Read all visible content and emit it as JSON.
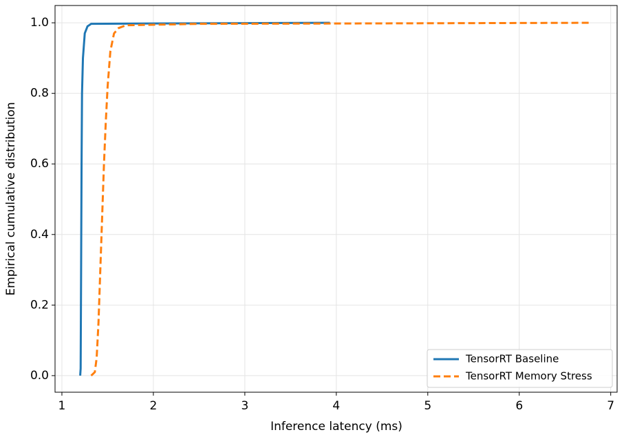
{
  "chart_data": {
    "type": "line",
    "xlabel": "Inference latency (ms)",
    "ylabel": "Empirical cumulative distribution",
    "xlim": [
      0.925,
      7.07
    ],
    "ylim": [
      -0.047,
      1.049
    ],
    "xticks": [
      1,
      2,
      3,
      4,
      5,
      6,
      7
    ],
    "yticks": [
      {
        "value": 0,
        "label": "0.0"
      },
      {
        "value": 0.2,
        "label": "0.2"
      },
      {
        "value": 0.4,
        "label": "0.4"
      },
      {
        "value": 0.6,
        "label": "0.6"
      },
      {
        "value": 0.8,
        "label": "0.8"
      },
      {
        "value": 1,
        "label": "1.0"
      }
    ],
    "grid": true,
    "legend": "lower right",
    "series": [
      {
        "name": "TensorRT Baseline",
        "color": "#1f77b4",
        "linestyle": "solid",
        "x": [
          1.2,
          1.205,
          1.21,
          1.215,
          1.22,
          1.23,
          1.25,
          1.28,
          1.32,
          2.0,
          3.0,
          3.93
        ],
        "values": [
          0,
          0.02,
          0.3,
          0.6,
          0.8,
          0.9,
          0.97,
          0.99,
          0.997,
          0.998,
          0.999,
          1.0
        ]
      },
      {
        "name": "TensorRT Memory Stress",
        "color": "#ff7f0e",
        "linestyle": "dashed",
        "x": [
          1.32,
          1.36,
          1.38,
          1.4,
          1.42,
          1.44,
          1.46,
          1.48,
          1.5,
          1.53,
          1.57,
          1.62,
          1.7,
          2.5,
          4.0,
          6.78
        ],
        "values": [
          0,
          0.01,
          0.05,
          0.15,
          0.3,
          0.45,
          0.6,
          0.72,
          0.82,
          0.92,
          0.97,
          0.985,
          0.993,
          0.997,
          0.998,
          1.0
        ]
      }
    ]
  }
}
